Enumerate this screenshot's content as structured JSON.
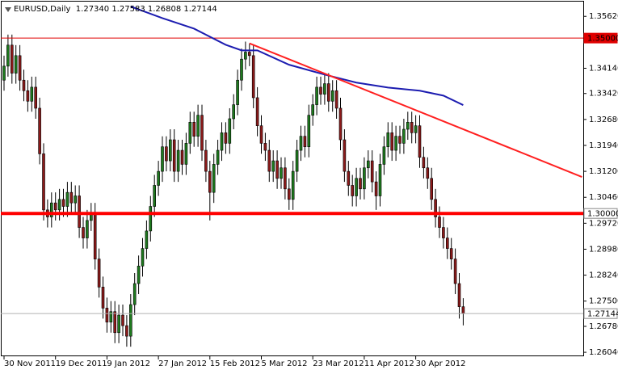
{
  "chart_data": {
    "type": "candlestick",
    "title": "EURUSD,Daily  1.27340 1.27583 1.26808 1.27144",
    "categories": [
      "30 Nov 2011",
      null,
      null,
      null,
      null,
      null,
      null,
      null,
      null,
      null,
      null,
      null,
      null,
      "19 Dec 2011",
      null,
      null,
      null,
      null,
      null,
      null,
      null,
      null,
      null,
      null,
      null,
      null,
      "9 Jan 2012",
      null,
      null,
      null,
      null,
      null,
      null,
      null,
      null,
      null,
      null,
      null,
      null,
      "27 Jan 2012",
      null,
      null,
      null,
      null,
      null,
      null,
      null,
      null,
      null,
      null,
      null,
      null,
      "15 Feb 2012",
      null,
      null,
      null,
      null,
      null,
      null,
      null,
      null,
      null,
      null,
      null,
      null,
      "5 Mar 2012",
      null,
      null,
      null,
      null,
      null,
      null,
      null,
      null,
      null,
      null,
      null,
      null,
      "23 Mar 2012",
      null,
      null,
      null,
      null,
      null,
      null,
      null,
      null,
      null,
      null,
      null,
      null,
      "11 Apr 2012",
      null,
      null,
      null,
      null,
      null,
      null,
      null,
      null,
      null,
      null,
      null,
      null,
      "30 Apr 2012",
      null,
      null,
      null,
      null,
      null,
      null,
      null,
      null,
      null,
      null,
      null,
      null
    ],
    "open": [
      1.338,
      1.342,
      1.348,
      1.34,
      1.345,
      1.338,
      1.335,
      1.332,
      1.336,
      1.33,
      1.317,
      1.301,
      1.299,
      1.303,
      1.301,
      1.304,
      1.302,
      1.306,
      1.303,
      1.305,
      1.296,
      1.293,
      1.298,
      1.3,
      1.287,
      1.279,
      1.273,
      1.269,
      1.272,
      1.266,
      1.271,
      1.268,
      1.265,
      1.274,
      1.28,
      1.285,
      1.29,
      1.295,
      1.302,
      1.308,
      1.312,
      1.319,
      1.315,
      1.321,
      1.312,
      1.318,
      1.314,
      1.32,
      1.326,
      1.322,
      1.328,
      1.318,
      1.312,
      1.306,
      1.314,
      1.318,
      1.323,
      1.32,
      1.327,
      1.331,
      1.338,
      1.344,
      1.346,
      1.345,
      1.333,
      1.325,
      1.32,
      1.318,
      1.312,
      1.315,
      1.31,
      1.313,
      1.307,
      1.304,
      1.312,
      1.318,
      1.322,
      1.319,
      1.328,
      1.331,
      1.336,
      1.334,
      1.337,
      1.332,
      1.335,
      1.33,
      1.321,
      1.312,
      1.308,
      1.305,
      1.31,
      1.307,
      1.313,
      1.315,
      1.309,
      1.305,
      1.314,
      1.319,
      1.323,
      1.318,
      1.322,
      1.32,
      1.324,
      1.326,
      1.323,
      1.325,
      1.316,
      1.313,
      1.31,
      1.304,
      1.299,
      1.296,
      1.293,
      1.29,
      1.287,
      1.28,
      1.2734
    ],
    "high": [
      1.345,
      1.351,
      1.351,
      1.348,
      1.348,
      1.341,
      1.338,
      1.339,
      1.339,
      1.333,
      1.32,
      1.304,
      1.306,
      1.306,
      1.307,
      1.307,
      1.309,
      1.309,
      1.308,
      1.308,
      1.299,
      1.301,
      1.303,
      1.303,
      1.29,
      1.282,
      1.276,
      1.275,
      1.275,
      1.274,
      1.274,
      1.271,
      1.277,
      1.283,
      1.288,
      1.293,
      1.298,
      1.305,
      1.311,
      1.315,
      1.322,
      1.322,
      1.324,
      1.324,
      1.321,
      1.321,
      1.323,
      1.329,
      1.329,
      1.331,
      1.331,
      1.321,
      1.315,
      1.317,
      1.321,
      1.326,
      1.326,
      1.33,
      1.334,
      1.341,
      1.347,
      1.349,
      1.3485,
      1.348,
      1.336,
      1.328,
      1.323,
      1.321,
      1.318,
      1.318,
      1.316,
      1.316,
      1.31,
      1.315,
      1.321,
      1.325,
      1.325,
      1.331,
      1.334,
      1.339,
      1.339,
      1.34,
      1.34,
      1.338,
      1.338,
      1.333,
      1.324,
      1.315,
      1.311,
      1.313,
      1.313,
      1.316,
      1.318,
      1.318,
      1.312,
      1.317,
      1.322,
      1.326,
      1.326,
      1.325,
      1.325,
      1.327,
      1.329,
      1.329,
      1.328,
      1.328,
      1.319,
      1.316,
      1.313,
      1.307,
      1.302,
      1.299,
      1.296,
      1.293,
      1.29,
      1.283,
      1.27583
    ],
    "low": [
      1.335,
      1.339,
      1.337,
      1.337,
      1.335,
      1.332,
      1.329,
      1.329,
      1.327,
      1.314,
      1.298,
      1.296,
      1.296,
      1.298,
      1.298,
      1.299,
      1.299,
      1.3,
      1.3,
      1.293,
      1.29,
      1.29,
      1.295,
      1.284,
      1.276,
      1.27,
      1.266,
      1.266,
      1.263,
      1.263,
      1.265,
      1.262,
      1.262,
      1.271,
      1.277,
      1.282,
      1.287,
      1.292,
      1.299,
      1.305,
      1.309,
      1.312,
      1.312,
      1.309,
      1.309,
      1.311,
      1.311,
      1.317,
      1.319,
      1.319,
      1.315,
      1.309,
      1.298,
      1.303,
      1.311,
      1.315,
      1.317,
      1.317,
      1.324,
      1.328,
      1.335,
      1.341,
      1.342,
      1.33,
      1.322,
      1.317,
      1.315,
      1.309,
      1.309,
      1.307,
      1.307,
      1.304,
      1.301,
      1.301,
      1.309,
      1.315,
      1.316,
      1.316,
      1.325,
      1.328,
      1.331,
      1.331,
      1.329,
      1.329,
      1.327,
      1.318,
      1.309,
      1.305,
      1.302,
      1.302,
      1.304,
      1.304,
      1.31,
      1.306,
      1.301,
      1.302,
      1.311,
      1.316,
      1.315,
      1.315,
      1.317,
      1.317,
      1.321,
      1.32,
      1.32,
      1.313,
      1.31,
      1.307,
      1.301,
      1.296,
      1.293,
      1.29,
      1.287,
      1.284,
      1.277,
      1.27,
      1.26808
    ],
    "close": [
      1.342,
      1.348,
      1.34,
      1.345,
      1.338,
      1.335,
      1.332,
      1.336,
      1.33,
      1.317,
      1.301,
      1.299,
      1.303,
      1.301,
      1.304,
      1.302,
      1.306,
      1.303,
      1.305,
      1.296,
      1.293,
      1.298,
      1.3,
      1.287,
      1.279,
      1.273,
      1.269,
      1.272,
      1.266,
      1.271,
      1.268,
      1.265,
      1.274,
      1.28,
      1.285,
      1.29,
      1.295,
      1.302,
      1.308,
      1.312,
      1.319,
      1.315,
      1.321,
      1.312,
      1.318,
      1.314,
      1.32,
      1.326,
      1.322,
      1.328,
      1.318,
      1.312,
      1.306,
      1.314,
      1.318,
      1.323,
      1.32,
      1.327,
      1.331,
      1.338,
      1.344,
      1.346,
      1.345,
      1.333,
      1.325,
      1.32,
      1.318,
      1.312,
      1.315,
      1.31,
      1.313,
      1.307,
      1.304,
      1.312,
      1.318,
      1.322,
      1.319,
      1.328,
      1.331,
      1.336,
      1.334,
      1.337,
      1.332,
      1.335,
      1.33,
      1.321,
      1.312,
      1.308,
      1.305,
      1.31,
      1.307,
      1.313,
      1.315,
      1.309,
      1.305,
      1.314,
      1.319,
      1.323,
      1.318,
      1.322,
      1.32,
      1.324,
      1.326,
      1.323,
      1.325,
      1.316,
      1.313,
      1.31,
      1.304,
      1.299,
      1.296,
      1.293,
      1.29,
      1.287,
      1.28,
      1.2734,
      1.27144
    ],
    "up_color": "#1e7a1e",
    "down_color": "#8b1a1a",
    "ylim": [
      1.2595,
      1.3604
    ],
    "yticks": [
      {
        "value": 1.3562,
        "label": "1.35620"
      },
      {
        "value": 1.3414,
        "label": "1.34140"
      },
      {
        "value": 1.3342,
        "label": "1.33420"
      },
      {
        "value": 1.3268,
        "label": "1.32680"
      },
      {
        "value": 1.3194,
        "label": "1.31940"
      },
      {
        "value": 1.312,
        "label": "1.31200"
      },
      {
        "value": 1.3046,
        "label": "1.30460"
      },
      {
        "value": 1.2972,
        "label": "1.29720"
      },
      {
        "value": 1.2898,
        "label": "1.28980"
      },
      {
        "value": 1.2824,
        "label": "1.28240"
      },
      {
        "value": 1.275,
        "label": "1.27500"
      },
      {
        "value": 1.2678,
        "label": "1.26780"
      },
      {
        "value": 1.2604,
        "label": "1.26040"
      }
    ],
    "hlines": [
      {
        "value": 1.35,
        "label": "1.35000",
        "color": "#e00000"
      },
      {
        "value": 1.3,
        "label": "1.30000",
        "color": "#ff0000"
      },
      {
        "value": 1.27144,
        "label": "1.27144",
        "color": "#b0b0b0"
      }
    ],
    "ma": {
      "x": [
        32,
        40,
        48,
        56,
        60,
        64,
        72,
        81,
        89,
        97,
        105,
        111,
        116
      ],
      "values": [
        1.359,
        1.3557,
        1.3527,
        1.3481,
        1.3465,
        1.3465,
        1.3424,
        1.3396,
        1.3373,
        1.3359,
        1.335,
        1.3336,
        1.3309
      ],
      "color": "#1c1cb0"
    },
    "trendline": {
      "x": [
        62,
        146
      ],
      "values": [
        1.3485,
        1.3104
      ],
      "color": "#ff2020"
    }
  }
}
